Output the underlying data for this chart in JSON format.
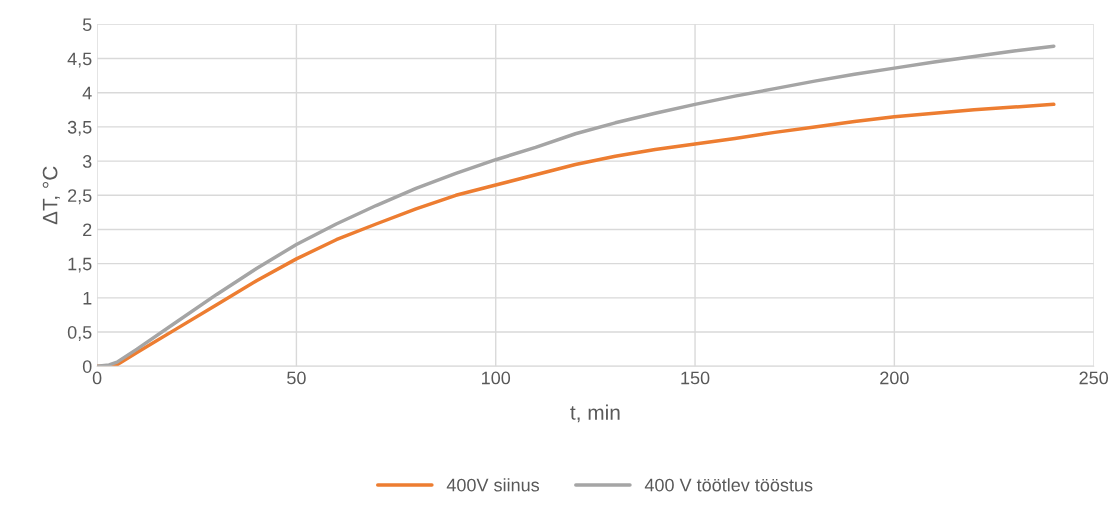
{
  "chart_data": {
    "type": "line",
    "xlabel": "t, min",
    "ylabel": "ΔT, °C",
    "x": [
      0,
      3,
      5,
      10,
      20,
      30,
      40,
      50,
      60,
      70,
      80,
      90,
      100,
      110,
      120,
      130,
      140,
      150,
      160,
      170,
      180,
      190,
      200,
      210,
      220,
      230,
      240
    ],
    "series": [
      {
        "name": "400V siinus",
        "color": "#ed7d31",
        "values": [
          0,
          0,
          0.02,
          0.2,
          0.55,
          0.9,
          1.25,
          1.57,
          1.85,
          2.08,
          2.3,
          2.5,
          2.65,
          2.8,
          2.95,
          3.07,
          3.17,
          3.25,
          3.33,
          3.42,
          3.5,
          3.58,
          3.65,
          3.7,
          3.75,
          3.79,
          3.83
        ]
      },
      {
        "name": "400 V töötlev tööstus",
        "color": "#a5a5a5",
        "values": [
          0,
          0.02,
          0.06,
          0.25,
          0.65,
          1.05,
          1.43,
          1.78,
          2.08,
          2.35,
          2.6,
          2.82,
          3.02,
          3.2,
          3.4,
          3.56,
          3.7,
          3.83,
          3.95,
          4.06,
          4.17,
          4.27,
          4.36,
          4.45,
          4.53,
          4.61,
          4.68
        ]
      }
    ],
    "xlim": [
      0,
      250
    ],
    "xticks": [
      0,
      50,
      100,
      150,
      200,
      250
    ],
    "ylim": [
      0,
      5
    ],
    "yticks": [
      0,
      {
        "value": 0.5,
        "label": "0,5"
      },
      1,
      {
        "value": 1.5,
        "label": "1,5"
      },
      2,
      {
        "value": 2.5,
        "label": "2,5"
      },
      3,
      {
        "value": 3.5,
        "label": "3,5"
      },
      4,
      {
        "value": 4.5,
        "label": "4,5"
      },
      5
    ],
    "grid": true,
    "legend": "bottom",
    "marker": "none",
    "line_style": "solid"
  }
}
